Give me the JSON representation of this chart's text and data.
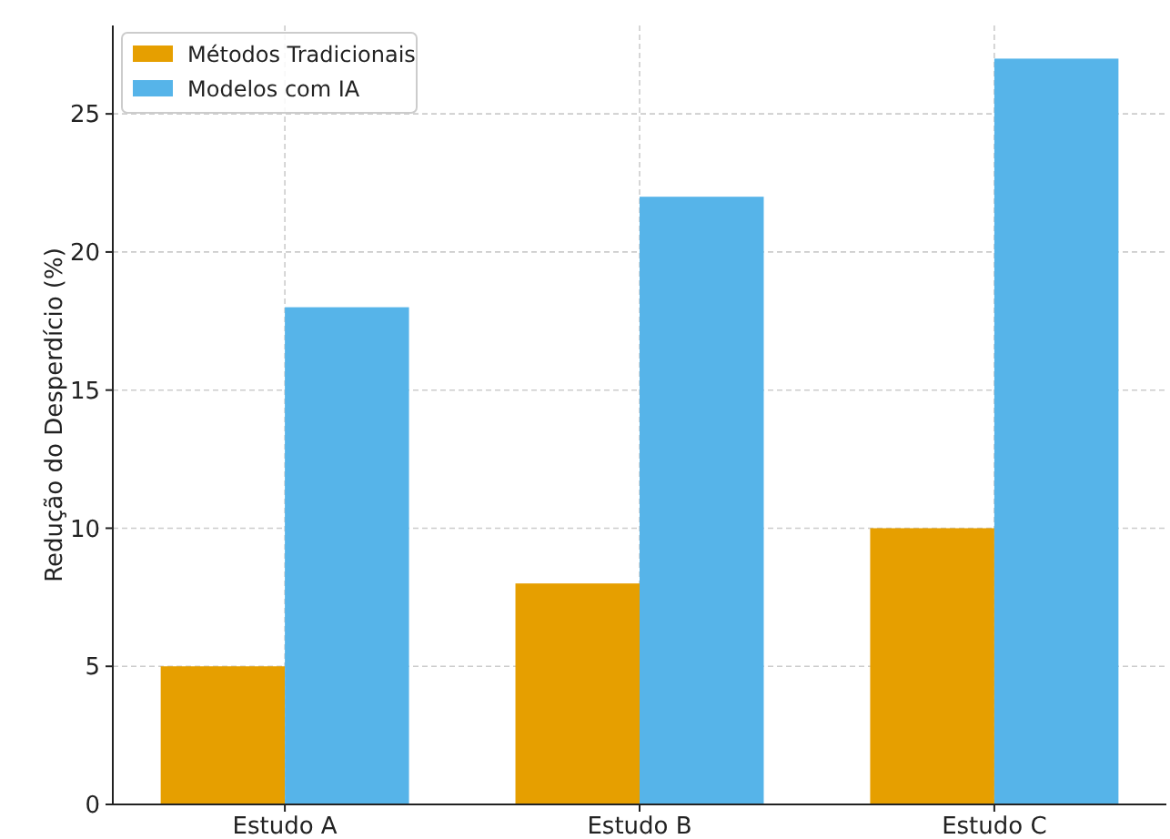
{
  "chart_data": {
    "type": "bar",
    "ylabel": "Redução do Desperdício (%)",
    "categories": [
      "Estudo A",
      "Estudo B",
      "Estudo C"
    ],
    "series": [
      {
        "name": "Métodos Tradicionais",
        "color": "#e69f00",
        "values": [
          5,
          8,
          10
        ]
      },
      {
        "name": "Modelos com IA",
        "color": "#56b4e9",
        "values": [
          18,
          22,
          27
        ]
      }
    ],
    "ylim": [
      0,
      28.2
    ],
    "yticks": [
      0,
      5,
      10,
      15,
      20,
      25
    ],
    "grid": true,
    "legend": "top left"
  }
}
